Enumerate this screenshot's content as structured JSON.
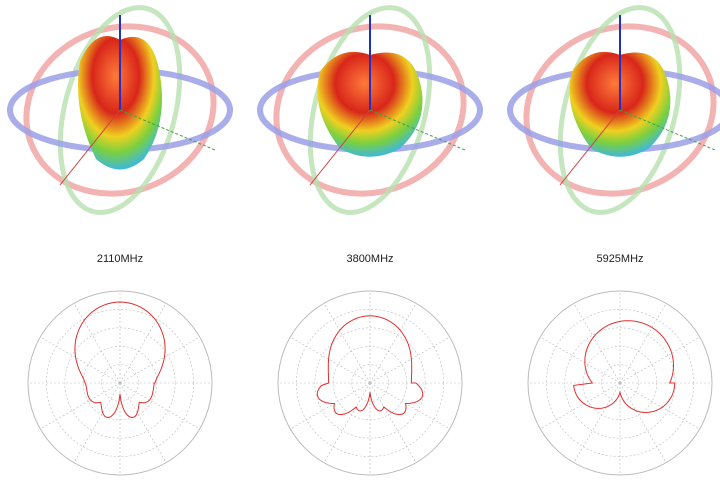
{
  "panels": [
    {
      "label": "2110MHz"
    },
    {
      "label": "3800MHz"
    },
    {
      "label": "5925MHz"
    }
  ]
}
